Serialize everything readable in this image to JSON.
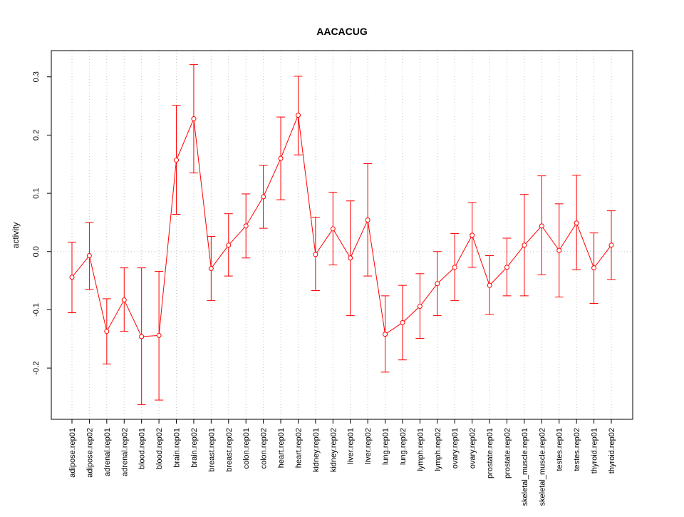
{
  "chart_data": {
    "type": "line",
    "title": "AACACUG",
    "xlabel": "",
    "ylabel": "activity",
    "ylim": [
      -0.288,
      0.345
    ],
    "yticks": [
      -0.2,
      -0.1,
      0.0,
      0.1,
      0.2,
      0.3
    ],
    "ytick_labels": [
      "-0.2",
      "-0.1",
      "0.0",
      "0.1",
      "0.2",
      "0.3"
    ],
    "grid": "dotted vertical at each category, horizontal at 0",
    "color": "#ff0000",
    "categories": [
      "adipose.rep01",
      "adipose.rep02",
      "adrenal.rep01",
      "adrenal.rep02",
      "blood.rep01",
      "blood.rep02",
      "brain.rep01",
      "brain.rep02",
      "breast.rep01",
      "breast.rep02",
      "colon.rep01",
      "colon.rep02",
      "heart.rep01",
      "heart.rep02",
      "kidney.rep01",
      "kidney.rep02",
      "liver.rep01",
      "liver.rep02",
      "lung.rep01",
      "lung.rep02",
      "lymph.rep01",
      "lymph.rep02",
      "ovary.rep01",
      "ovary.rep02",
      "prostate.rep01",
      "prostate.rep02",
      "skeletal_muscle.rep01",
      "skeletal_muscle.rep02",
      "testes.rep01",
      "testes.rep02",
      "thyroid.rep01",
      "thyroid.rep02"
    ],
    "values": [
      -0.044,
      -0.007,
      -0.137,
      -0.083,
      -0.146,
      -0.144,
      0.157,
      0.228,
      -0.029,
      0.011,
      0.044,
      0.094,
      0.16,
      0.234,
      -0.005,
      0.039,
      -0.011,
      0.054,
      -0.142,
      -0.122,
      -0.094,
      -0.055,
      -0.027,
      0.028,
      -0.058,
      -0.027,
      0.011,
      0.044,
      0.002,
      0.049,
      -0.028,
      0.011
    ],
    "upper": [
      0.016,
      0.05,
      -0.081,
      -0.028,
      -0.028,
      -0.034,
      0.251,
      0.321,
      0.026,
      0.065,
      0.099,
      0.148,
      0.231,
      0.301,
      0.059,
      0.102,
      0.087,
      0.151,
      -0.076,
      -0.058,
      -0.038,
      0.0,
      0.031,
      0.084,
      -0.007,
      0.023,
      0.098,
      0.13,
      0.082,
      0.131,
      0.032,
      0.07
    ],
    "lower": [
      -0.105,
      -0.065,
      -0.193,
      -0.137,
      -0.263,
      -0.255,
      0.064,
      0.135,
      -0.084,
      -0.042,
      -0.011,
      0.04,
      0.089,
      0.166,
      -0.067,
      -0.023,
      -0.11,
      -0.042,
      -0.207,
      -0.186,
      -0.149,
      -0.11,
      -0.084,
      -0.027,
      -0.108,
      -0.076,
      -0.076,
      -0.04,
      -0.078,
      -0.031,
      -0.089,
      -0.048
    ]
  }
}
